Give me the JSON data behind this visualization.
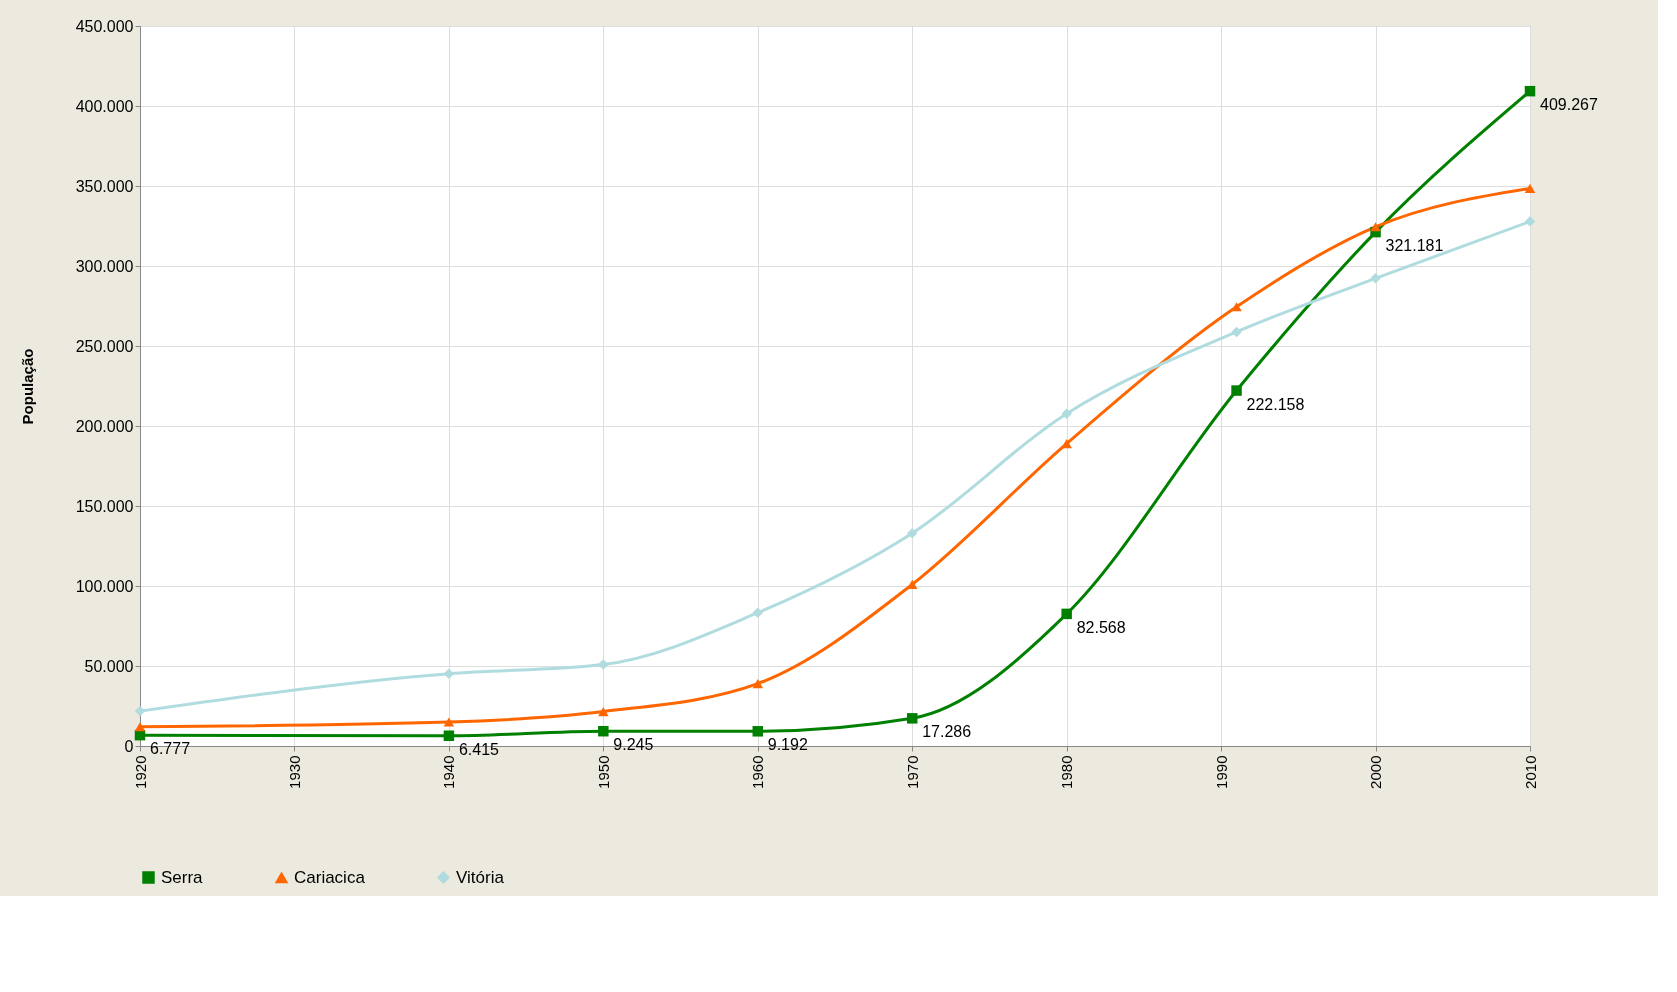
{
  "chart_data": {
    "type": "line",
    "ylabel": "População",
    "x": [
      1920,
      1940,
      1950,
      1960,
      1970,
      1980,
      1991,
      2000,
      2010
    ],
    "xlim": [
      1920,
      2010
    ],
    "xticks": [
      1920,
      1930,
      1940,
      1950,
      1960,
      1970,
      1980,
      1990,
      2000,
      2010
    ],
    "ylim": [
      0,
      450000
    ],
    "yticks": [
      {
        "value": 0,
        "label": "0"
      },
      {
        "value": 50000,
        "label": "50.000"
      },
      {
        "value": 100000,
        "label": "100.000"
      },
      {
        "value": 150000,
        "label": "150.000"
      },
      {
        "value": 200000,
        "label": "200.000"
      },
      {
        "value": 250000,
        "label": "250.000"
      },
      {
        "value": 300000,
        "label": "300.000"
      },
      {
        "value": 350000,
        "label": "350.000"
      },
      {
        "value": 400000,
        "label": "400.000"
      },
      {
        "value": 450000,
        "label": "450.000"
      }
    ],
    "grid": true,
    "legend": "bottom",
    "line_style": "solid",
    "series": [
      {
        "name": "Serra",
        "color": "#008000",
        "marker": "square",
        "values": [
          6777,
          6415,
          9245,
          9192,
          17286,
          82568,
          222158,
          321181,
          409267
        ],
        "value_labels": [
          "6.777",
          "6.415",
          "9.245",
          "9.192",
          "17.286",
          "82.568",
          "222.158",
          "321.181",
          "409.267"
        ]
      },
      {
        "name": "Cariacica",
        "color": "#ff6600",
        "marker": "triangle",
        "values": [
          12000,
          15000,
          21500,
          39000,
          101000,
          189000,
          274500,
          324500,
          348500
        ]
      },
      {
        "name": "Vitória",
        "color": "#b0dcdf",
        "marker": "diamond",
        "values": [
          21800,
          45200,
          50900,
          83300,
          133000,
          207700,
          258800,
          292300,
          327800
        ]
      }
    ]
  }
}
